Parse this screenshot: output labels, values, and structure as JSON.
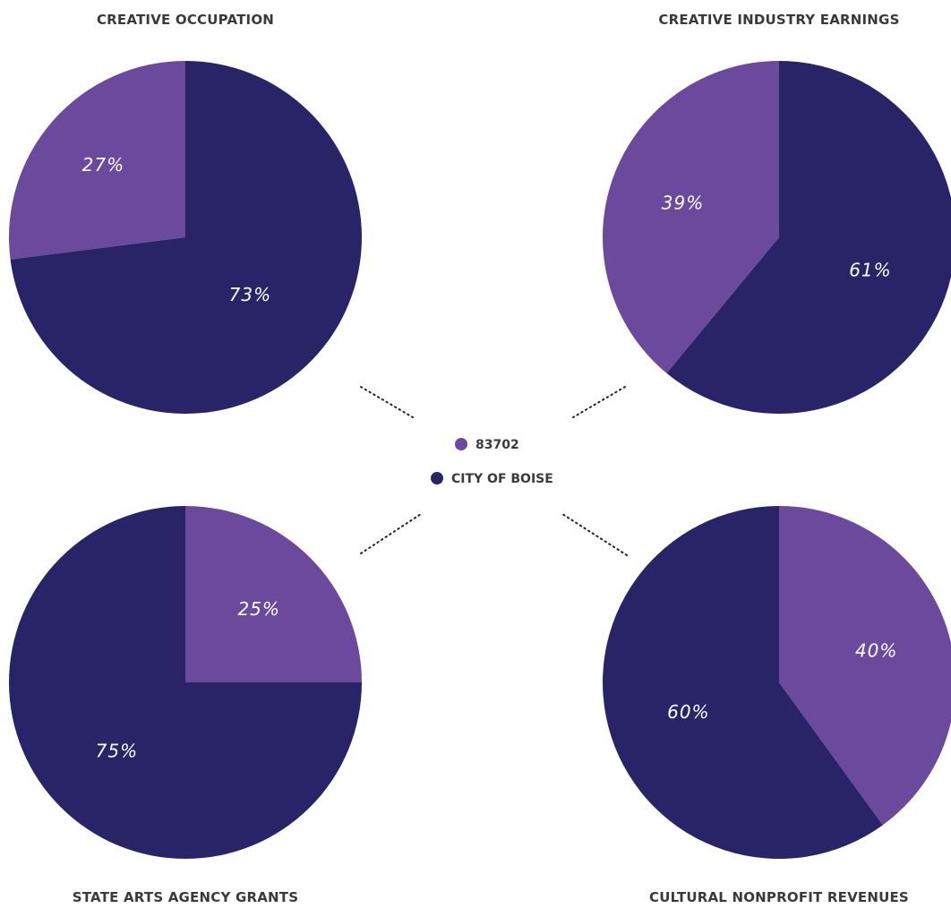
{
  "legend": [
    {
      "label": "83702",
      "color": "#6b4a9e"
    },
    {
      "label": "CITY OF BOISE",
      "color": "#282467"
    }
  ],
  "chart_data": [
    {
      "type": "pie",
      "title": "CREATIVE OCCUPATION",
      "slices": [
        {
          "series": "83702",
          "value": 27,
          "label": "27%",
          "color": "#6b4a9e"
        },
        {
          "series": "CITY OF BOISE",
          "value": 73,
          "label": "73%",
          "color": "#282467"
        }
      ]
    },
    {
      "type": "pie",
      "title": "CREATIVE INDUSTRY EARNINGS",
      "slices": [
        {
          "series": "83702",
          "value": 39,
          "label": "39%",
          "color": "#6b4a9e"
        },
        {
          "series": "CITY OF BOISE",
          "value": 61,
          "label": "61%",
          "color": "#282467"
        }
      ]
    },
    {
      "type": "pie",
      "title": "STATE ARTS AGENCY GRANTS",
      "slices": [
        {
          "series": "83702",
          "value": 25,
          "label": "25%",
          "color": "#6b4a9e"
        },
        {
          "series": "CITY OF BOISE",
          "value": 75,
          "label": "75%",
          "color": "#282467"
        }
      ]
    },
    {
      "type": "pie",
      "title": "CULTURAL NONPROFIT REVENUES",
      "slices": [
        {
          "series": "83702",
          "value": 40,
          "label": "40%",
          "color": "#6b4a9e"
        },
        {
          "series": "CITY OF BOISE",
          "value": 60,
          "label": "60%",
          "color": "#282467"
        }
      ]
    }
  ]
}
